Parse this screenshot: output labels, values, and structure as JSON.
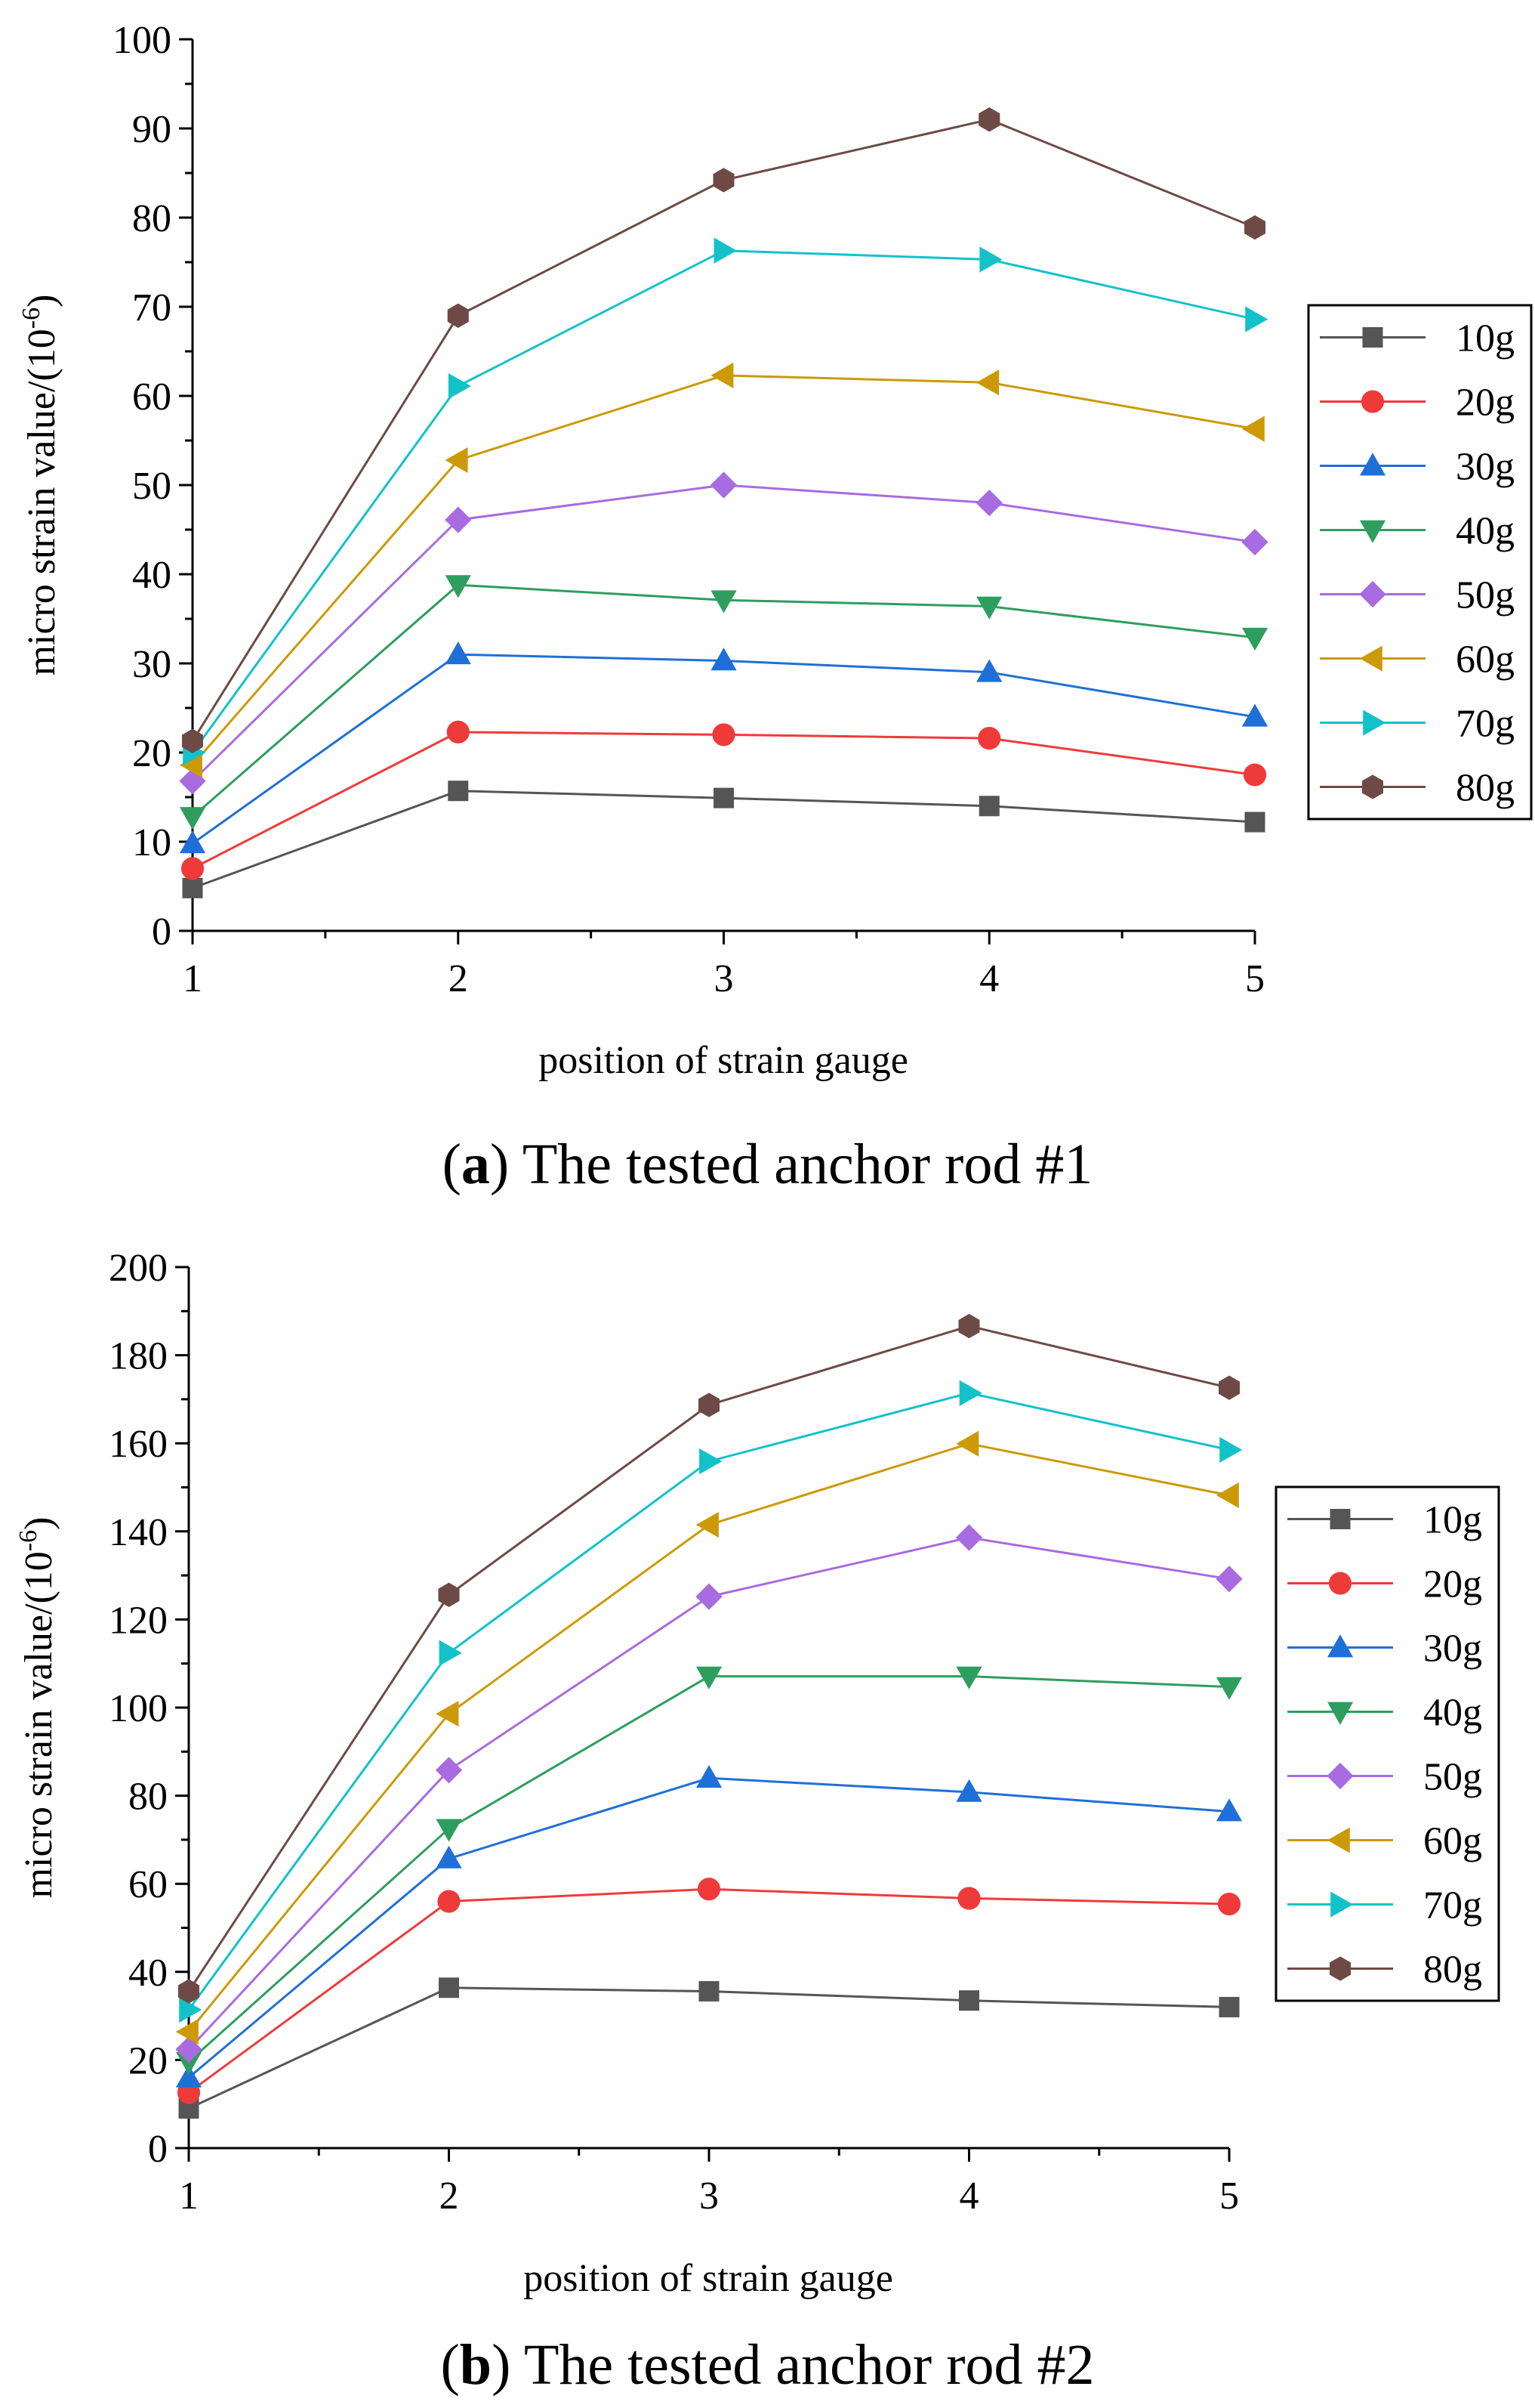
{
  "chart_data": [
    {
      "panel": "a",
      "type": "line",
      "caption_label": "a",
      "caption_text": "The tested anchor rod #1",
      "xlabel": "position of strain gauge",
      "ylabel": "micro strain value/(10",
      "ylabel_exponent": "-6",
      "ylabel_close": ")",
      "x": [
        1,
        2,
        3,
        4,
        5
      ],
      "xticks": [
        "1",
        "2",
        "3",
        "4",
        "5"
      ],
      "ylim": [
        0,
        100
      ],
      "yticks": [
        "0",
        "10",
        "20",
        "30",
        "40",
        "50",
        "60",
        "70",
        "80",
        "90",
        "100"
      ],
      "grid": false,
      "legend_position": "right",
      "series": [
        {
          "name": "10g",
          "color": "#555555",
          "marker": "square",
          "values": [
            4.8,
            15.7,
            14.9,
            14.0,
            12.2
          ]
        },
        {
          "name": "20g",
          "color": "#ef3a3a",
          "marker": "circle",
          "values": [
            7.0,
            22.3,
            22.0,
            21.6,
            17.5
          ]
        },
        {
          "name": "30g",
          "color": "#1f6fd8",
          "marker": "triangle-up",
          "values": [
            9.8,
            31.0,
            30.3,
            29.0,
            24.0
          ]
        },
        {
          "name": "40g",
          "color": "#2e9e5e",
          "marker": "triangle-down",
          "values": [
            12.8,
            38.8,
            37.1,
            36.4,
            32.9
          ]
        },
        {
          "name": "50g",
          "color": "#a86be0",
          "marker": "diamond",
          "values": [
            16.8,
            46.1,
            50.0,
            48.0,
            43.6
          ]
        },
        {
          "name": "60g",
          "color": "#cc9a06",
          "marker": "triangle-left",
          "values": [
            18.6,
            52.8,
            62.3,
            61.5,
            56.3
          ]
        },
        {
          "name": "70g",
          "color": "#13c2c9",
          "marker": "triangle-right",
          "values": [
            20.0,
            61.1,
            76.3,
            75.3,
            68.6
          ]
        },
        {
          "name": "80g",
          "color": "#6e4a46",
          "marker": "hexagon",
          "values": [
            21.3,
            69.0,
            84.2,
            91.0,
            78.9
          ]
        }
      ]
    },
    {
      "panel": "b",
      "type": "line",
      "caption_label": "b",
      "caption_text": "The tested anchor rod #2",
      "xlabel": "position of strain gauge",
      "ylabel": "micro strain value/(10",
      "ylabel_exponent": "-6",
      "ylabel_close": ")",
      "x": [
        1,
        2,
        3,
        4,
        5
      ],
      "xticks": [
        "1",
        "2",
        "3",
        "4",
        "5"
      ],
      "ylim": [
        0,
        200
      ],
      "yticks": [
        "0",
        "20",
        "40",
        "60",
        "80",
        "100",
        "120",
        "140",
        "160",
        "180",
        "200"
      ],
      "grid": false,
      "legend_position": "right",
      "series": [
        {
          "name": "10g",
          "color": "#555555",
          "marker": "square",
          "values": [
            9.0,
            36.4,
            35.6,
            33.5,
            32.0
          ]
        },
        {
          "name": "20g",
          "color": "#ef3a3a",
          "marker": "circle",
          "values": [
            12.6,
            56.0,
            58.8,
            56.7,
            55.4
          ]
        },
        {
          "name": "30g",
          "color": "#1f6fd8",
          "marker": "triangle-up",
          "values": [
            16.0,
            65.7,
            84.0,
            80.8,
            76.4
          ]
        },
        {
          "name": "40g",
          "color": "#2e9e5e",
          "marker": "triangle-down",
          "values": [
            19.6,
            72.5,
            107.1,
            107.1,
            104.7
          ]
        },
        {
          "name": "50g",
          "color": "#a86be0",
          "marker": "diamond",
          "values": [
            22.4,
            85.8,
            125.2,
            138.6,
            129.2
          ]
        },
        {
          "name": "60g",
          "color": "#cc9a06",
          "marker": "triangle-left",
          "values": [
            26.4,
            98.6,
            141.5,
            159.9,
            148.2
          ]
        },
        {
          "name": "70g",
          "color": "#13c2c9",
          "marker": "triangle-right",
          "values": [
            31.4,
            112.4,
            155.9,
            171.4,
            158.5
          ]
        },
        {
          "name": "80g",
          "color": "#6e4a46",
          "marker": "hexagon",
          "values": [
            35.6,
            125.6,
            168.7,
            186.6,
            172.6
          ]
        }
      ]
    }
  ]
}
